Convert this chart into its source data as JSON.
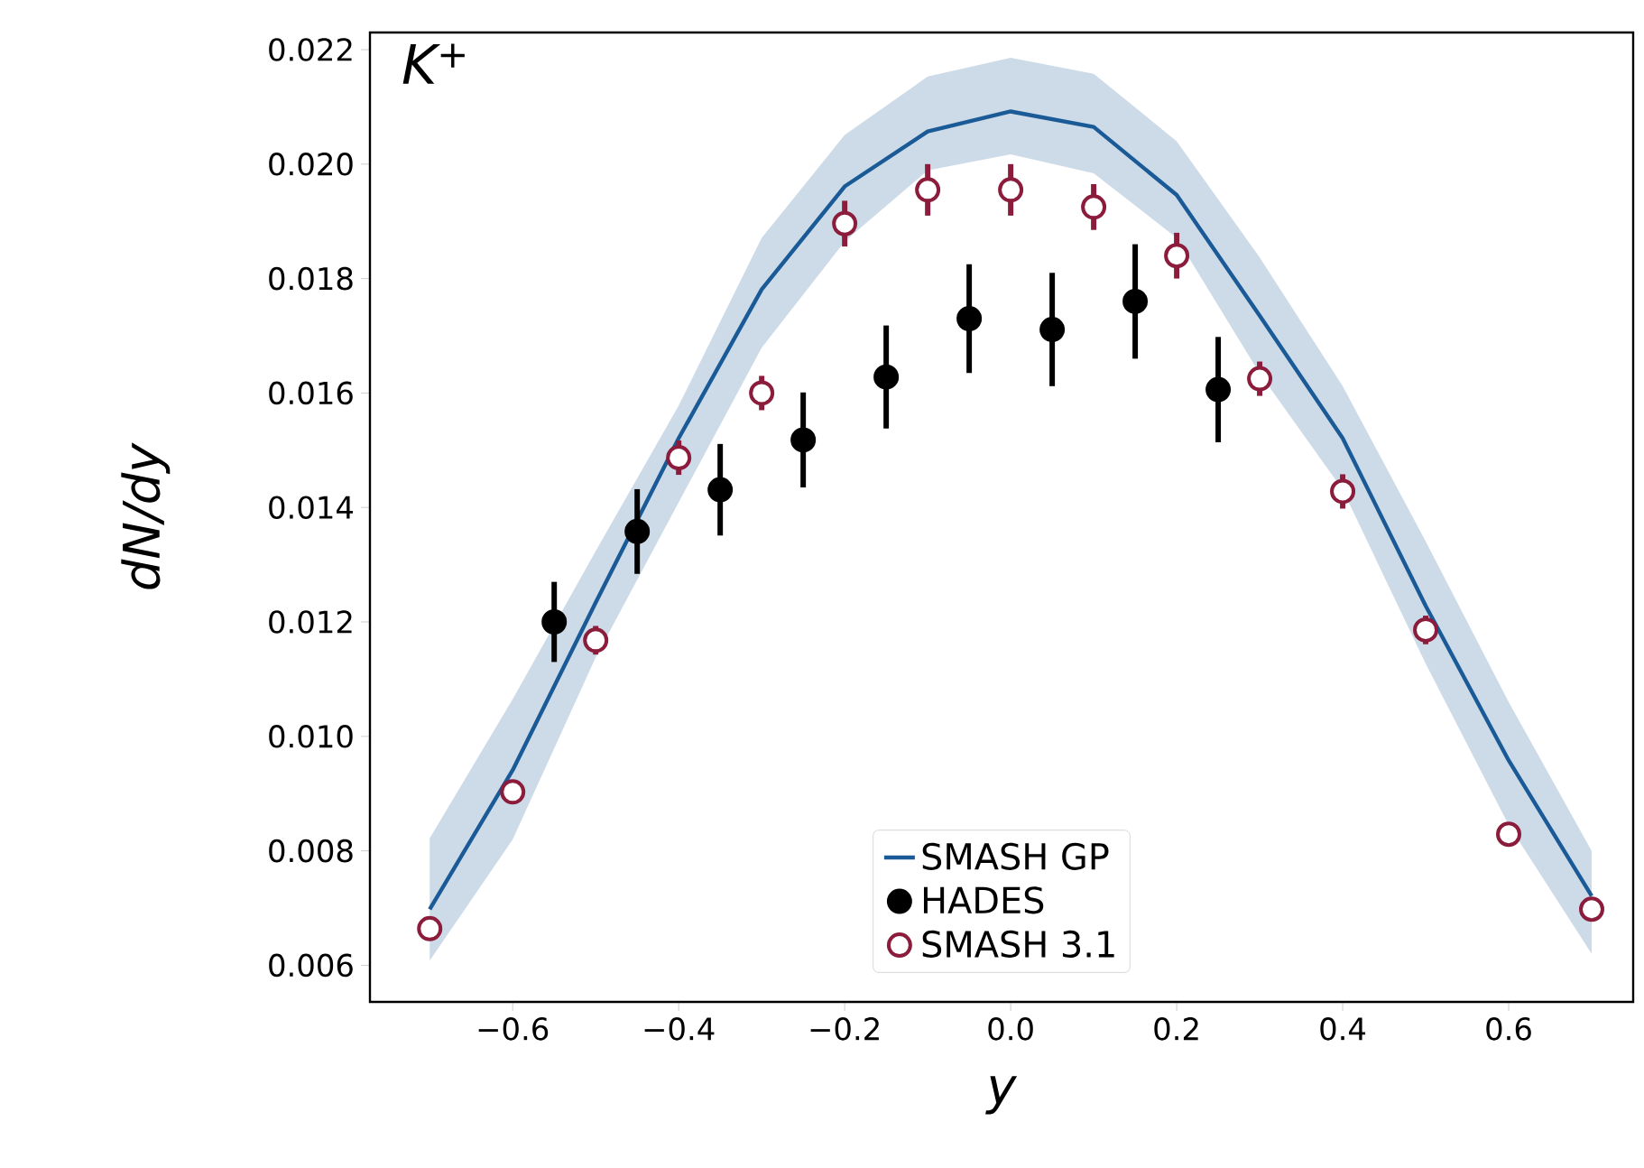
{
  "chart_data": {
    "type": "scatter",
    "xlabel": "y",
    "ylabel": "dN/dy",
    "annotations": [
      "K$^{+}$"
    ],
    "xlim": [
      -0.772,
      0.75
    ],
    "ylim": [
      0.00536,
      0.0223
    ],
    "xticks": [
      {
        "value": -0.6,
        "label": "−0.6"
      },
      {
        "value": -0.4,
        "label": "−0.4"
      },
      {
        "value": -0.2,
        "label": "−0.2"
      },
      {
        "value": 0.0,
        "label": "0.0"
      },
      {
        "value": 0.2,
        "label": "0.2"
      },
      {
        "value": 0.4,
        "label": "0.4"
      },
      {
        "value": 0.6,
        "label": "0.6"
      }
    ],
    "yticks": [
      {
        "value": 0.006,
        "label": "0.006"
      },
      {
        "value": 0.008,
        "label": "0.008"
      },
      {
        "value": 0.01,
        "label": "0.010"
      },
      {
        "value": 0.012,
        "label": "0.012"
      },
      {
        "value": 0.014,
        "label": "0.014"
      },
      {
        "value": 0.016,
        "label": "0.016"
      },
      {
        "value": 0.018,
        "label": "0.018"
      },
      {
        "value": 0.02,
        "label": "0.020"
      },
      {
        "value": 0.022,
        "label": "0.022"
      }
    ],
    "legend": "bottom",
    "grid": false,
    "series": [
      {
        "name": "SMASH GP",
        "type": "line",
        "color": "#1a5a96",
        "marker": "none",
        "line_style": "solid",
        "x": [
          -0.7,
          -0.6,
          -0.5,
          -0.4,
          -0.3,
          -0.2,
          -0.1,
          0.0,
          0.1,
          0.2,
          0.3,
          0.4,
          0.5,
          0.6,
          0.7
        ],
        "values": [
          0.00698,
          0.00941,
          0.01234,
          0.01521,
          0.01781,
          0.01961,
          0.02057,
          0.02092,
          0.02065,
          0.01946,
          0.01735,
          0.01521,
          0.01228,
          0.00958,
          0.00721
        ],
        "lower": [
          0.00608,
          0.0082,
          0.01138,
          0.01409,
          0.01679,
          0.01865,
          0.01989,
          0.02017,
          0.01984,
          0.01871,
          0.01634,
          0.01431,
          0.01127,
          0.00845,
          0.0062
        ],
        "upper": [
          0.00822,
          0.01065,
          0.01324,
          0.01578,
          0.01871,
          0.02051,
          0.02153,
          0.02186,
          0.02158,
          0.0204,
          0.01837,
          0.01612,
          0.01341,
          0.0106,
          0.008
        ]
      },
      {
        "name": "HADES",
        "color": "#000000",
        "marker": "circle",
        "x": [
          -0.55,
          -0.45,
          -0.35,
          -0.25,
          -0.15,
          -0.05,
          0.05,
          0.15,
          0.25
        ],
        "values": [
          0.012,
          0.01358,
          0.01431,
          0.01518,
          0.01628,
          0.0173,
          0.01711,
          0.0176,
          0.01606
        ],
        "errors": [
          0.0007,
          0.00074,
          0.0008,
          0.00083,
          0.0009,
          0.00095,
          0.00099,
          0.001,
          0.00092
        ]
      },
      {
        "name": "SMASH 3.1",
        "color": "#8c1c3c",
        "marker": "circle",
        "x": [
          -0.7,
          -0.6,
          -0.5,
          -0.4,
          -0.3,
          -0.2,
          -0.1,
          0.0,
          0.1,
          0.2,
          0.3,
          0.4,
          0.5,
          0.6,
          0.7
        ],
        "values": [
          0.00664,
          0.00903,
          0.01168,
          0.01487,
          0.016,
          0.01896,
          0.01955,
          0.01955,
          0.01925,
          0.0184,
          0.01625,
          0.01428,
          0.01186,
          0.00829,
          0.00698
        ],
        "errors": [
          0.0002,
          0.0002,
          0.00025,
          0.0003,
          0.0003,
          0.0004,
          0.00045,
          0.00045,
          0.0004,
          0.0004,
          0.0003,
          0.0003,
          0.00025,
          0.0002,
          0.0002
        ]
      }
    ]
  }
}
